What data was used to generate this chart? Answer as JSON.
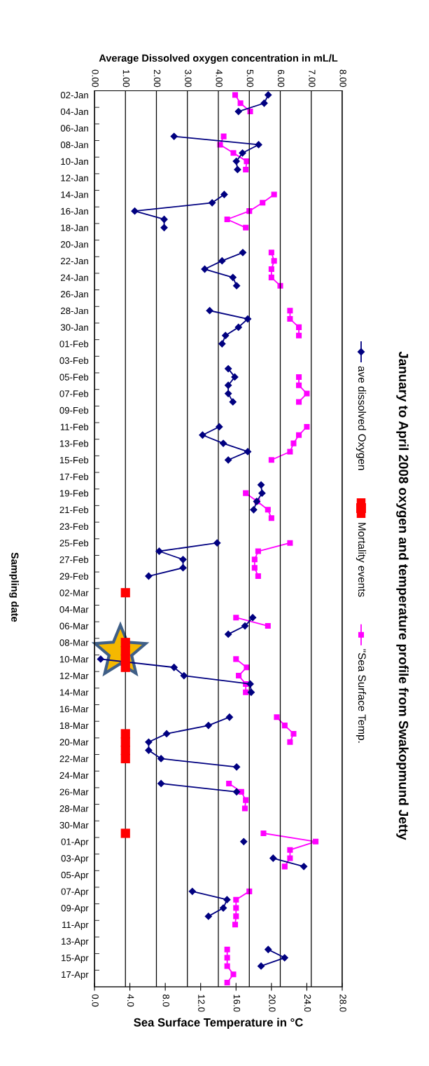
{
  "chart_data": {
    "type": "line",
    "title": "January to April 2008 oxygen and temperature profile from Swakopmund Jetty",
    "xlabel": "Sea Surface Temperature in °C",
    "x2label": "Average Dissolved oxygen concentration in mL/L",
    "ylabel": "Sampling date",
    "categories": [
      "02-Jan",
      null,
      "04-Jan",
      null,
      "06-Jan",
      null,
      "08-Jan",
      null,
      "10-Jan",
      null,
      "12-Jan",
      null,
      "14-Jan",
      null,
      "16-Jan",
      null,
      "18-Jan",
      null,
      "20-Jan",
      null,
      "22-Jan",
      null,
      "24-Jan",
      null,
      "26-Jan",
      null,
      "28-Jan",
      null,
      "30-Jan",
      null,
      "01-Feb",
      null,
      "03-Feb",
      null,
      "05-Feb",
      null,
      "07-Feb",
      null,
      "09-Feb",
      null,
      "11-Feb",
      null,
      "13-Feb",
      null,
      "15-Feb",
      null,
      "17-Feb",
      null,
      "19-Feb",
      null,
      "21-Feb",
      null,
      "23-Feb",
      null,
      "25-Feb",
      null,
      "27-Feb",
      null,
      "29-Feb",
      null,
      "02-Mar",
      null,
      "04-Mar",
      null,
      "06-Mar",
      null,
      "08-Mar",
      null,
      "10-Mar",
      null,
      "12-Mar",
      null,
      "14-Mar",
      null,
      "16-Mar",
      null,
      "18-Mar",
      null,
      "20-Mar",
      null,
      "22-Mar",
      null,
      "24-Mar",
      null,
      "26-Mar",
      null,
      "28-Mar",
      null,
      "30-Mar",
      null,
      "01-Apr",
      null,
      "03-Apr",
      null,
      "05-Apr",
      null,
      "07-Apr",
      null,
      "09-Apr",
      null,
      "11-Apr",
      null,
      "13-Apr",
      null,
      "15-Apr",
      null,
      "17-Apr",
      null
    ],
    "series": [
      {
        "name": "ave dissolved Oxygen",
        "axis": "x2",
        "color": "#000080",
        "marker": "diamond",
        "line_style": "solid",
        "values": [
          5.61,
          5.48,
          4.65,
          null,
          null,
          2.57,
          5.3,
          4.78,
          4.58,
          4.62,
          null,
          null,
          4.19,
          3.8,
          1.3,
          2.25,
          2.25,
          null,
          null,
          4.79,
          4.12,
          3.56,
          4.47,
          4.59,
          null,
          null,
          3.72,
          4.95,
          4.65,
          4.23,
          4.12,
          null,
          null,
          4.32,
          4.53,
          4.32,
          4.32,
          4.47,
          null,
          null,
          4.03,
          3.49,
          4.16,
          4.95,
          4.32,
          null,
          null,
          5.38,
          5.41,
          5.24,
          5.14,
          null,
          null,
          null,
          3.96,
          2.09,
          2.86,
          2.86,
          1.75,
          null,
          null,
          null,
          null,
          5.11,
          4.86,
          4.32,
          null,
          null,
          0.2,
          2.57,
          2.89,
          5.03,
          5.06,
          null,
          null,
          4.36,
          3.68,
          2.33,
          1.75,
          1.75,
          2.15,
          4.59,
          null,
          2.15,
          4.59,
          null,
          null,
          null,
          null,
          null,
          4.82,
          null,
          5.77,
          6.76,
          null,
          null,
          3.16,
          4.28,
          4.16,
          3.68,
          null,
          null,
          null,
          5.61,
          6.14,
          5.38,
          null,
          null
        ]
      },
      {
        "name": "Mortality events",
        "type": "scatter",
        "axis": "x2",
        "color": "#ff0000",
        "marker": "square",
        "values": [
          null,
          null,
          null,
          null,
          null,
          null,
          null,
          null,
          null,
          null,
          null,
          null,
          null,
          null,
          null,
          null,
          null,
          null,
          null,
          null,
          null,
          null,
          null,
          null,
          null,
          null,
          null,
          null,
          null,
          null,
          null,
          null,
          null,
          null,
          null,
          null,
          null,
          null,
          null,
          null,
          null,
          null,
          null,
          null,
          null,
          null,
          null,
          null,
          null,
          null,
          null,
          null,
          null,
          null,
          null,
          null,
          null,
          null,
          null,
          null,
          1.0,
          null,
          null,
          null,
          null,
          null,
          1.0,
          1.0,
          1.0,
          1.0,
          null,
          null,
          null,
          null,
          null,
          null,
          null,
          1.0,
          1.0,
          1.0,
          1.0,
          null,
          null,
          null,
          null,
          null,
          null,
          null,
          null,
          1.0,
          null,
          null,
          null,
          null,
          null,
          null,
          null,
          null,
          null,
          null,
          null,
          null,
          null,
          null,
          null,
          null,
          null,
          null
        ]
      },
      {
        "name": "\"Sea Surface Temp.",
        "color": "#ff00ff",
        "marker": "square",
        "line_style": "solid",
        "values": [
          15.9,
          16.5,
          17.6,
          null,
          null,
          14.6,
          14.2,
          15.7,
          17.2,
          17.1,
          null,
          null,
          20.3,
          19.0,
          17.5,
          15.0,
          17.1,
          null,
          null,
          20.0,
          20.3,
          20.0,
          20.0,
          21.0,
          null,
          null,
          22.1,
          22.1,
          23.1,
          23.1,
          null,
          null,
          null,
          null,
          23.1,
          23.1,
          24.0,
          23.1,
          null,
          null,
          24.0,
          23.1,
          22.5,
          22.1,
          20.0,
          null,
          null,
          null,
          17.1,
          18.4,
          19.6,
          20.0,
          null,
          null,
          22.1,
          18.5,
          18.1,
          18.1,
          18.5,
          null,
          null,
          null,
          null,
          16.0,
          19.6,
          null,
          null,
          null,
          16.0,
          17.2,
          16.3,
          17.1,
          17.1,
          null,
          null,
          20.6,
          21.5,
          22.5,
          22.1,
          null,
          null,
          null,
          null,
          15.2,
          16.6,
          17.1,
          17.0,
          null,
          null,
          19.1,
          25.0,
          22.1,
          22.1,
          21.5,
          null,
          null,
          17.5,
          16.0,
          16.0,
          16.0,
          15.9,
          null,
          null,
          15.0,
          15.0,
          15.0,
          15.7,
          15.0
        ]
      }
    ],
    "xlim": [
      0,
      28
    ],
    "xticks": [
      {
        "value": 0,
        "label": "0.0"
      },
      {
        "value": 4,
        "label": "4.0"
      },
      {
        "value": 8,
        "label": "8.0"
      },
      {
        "value": 12,
        "label": "12.0"
      },
      {
        "value": 16,
        "label": "16.0"
      },
      {
        "value": 20,
        "label": "20.0"
      },
      {
        "value": 24,
        "label": "24.0"
      },
      {
        "value": 28,
        "label": "28.0"
      }
    ],
    "x2lim": [
      0,
      8
    ],
    "x2ticks": [
      {
        "value": 0,
        "label": "0.00"
      },
      {
        "value": 1,
        "label": "1.00"
      },
      {
        "value": 2,
        "label": "2.00"
      },
      {
        "value": 3,
        "label": "3.00"
      },
      {
        "value": 4,
        "label": "4.00"
      },
      {
        "value": 5,
        "label": "5.00"
      },
      {
        "value": 6,
        "label": "6.00"
      },
      {
        "value": 7,
        "label": "7.00"
      },
      {
        "value": 8,
        "label": "8.00"
      }
    ],
    "grid": true,
    "legend": "right",
    "orientation": "horizontal"
  }
}
